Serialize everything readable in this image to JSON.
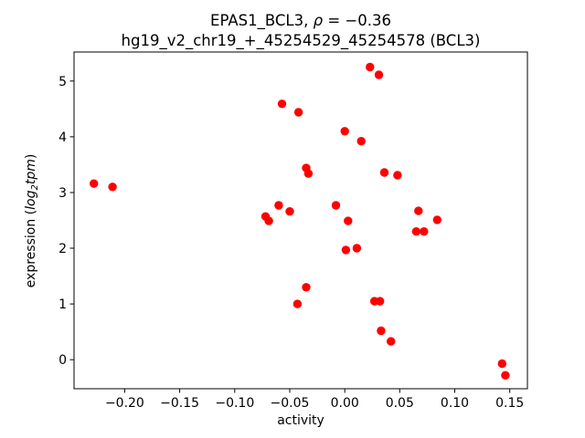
{
  "figure": {
    "background_color": "#ffffff",
    "marker_color": "#ff0000",
    "axis_color": "#000000"
  },
  "chart_data": {
    "type": "scatter",
    "title": "EPAS1_BCL3, ρ = −0.36",
    "title_parts": [
      "EPAS1_BCL3, ",
      "ρ",
      " = −0.36"
    ],
    "subtitle": "hg19_v2_chr19_+_45254529_45254578 (BCL3)",
    "xlabel": "activity",
    "ylabel": "expression (log2tpm)",
    "ylabel_parts": [
      "expression (",
      "log",
      "2",
      "tpm",
      ")"
    ],
    "legend": "none",
    "grid": false,
    "marker_color": "#ff0000",
    "xlim": [
      -0.246,
      0.166
    ],
    "ylim": [
      -0.52,
      5.52
    ],
    "x_ticks": [
      -0.2,
      -0.15,
      -0.1,
      -0.05,
      0.0,
      0.05,
      0.1,
      0.15
    ],
    "x_tick_labels": [
      "−0.20",
      "−0.15",
      "−0.10",
      "−0.05",
      "0.00",
      "0.05",
      "0.10",
      "0.15"
    ],
    "y_ticks": [
      0,
      1,
      2,
      3,
      4,
      5
    ],
    "y_tick_labels": [
      "0",
      "1",
      "2",
      "3",
      "4",
      "5"
    ],
    "points": [
      [
        -0.228,
        3.16
      ],
      [
        -0.211,
        3.1
      ],
      [
        -0.057,
        4.59
      ],
      [
        -0.042,
        4.44
      ],
      [
        0.023,
        5.25
      ],
      [
        0.031,
        5.11
      ],
      [
        0.0,
        4.1
      ],
      [
        0.015,
        3.92
      ],
      [
        -0.035,
        3.44
      ],
      [
        -0.033,
        3.34
      ],
      [
        0.036,
        3.36
      ],
      [
        0.048,
        3.31
      ],
      [
        -0.06,
        2.77
      ],
      [
        -0.05,
        2.66
      ],
      [
        -0.072,
        2.57
      ],
      [
        -0.069,
        2.49
      ],
      [
        -0.008,
        2.77
      ],
      [
        0.003,
        2.49
      ],
      [
        0.067,
        2.67
      ],
      [
        0.084,
        2.51
      ],
      [
        0.065,
        2.3
      ],
      [
        0.072,
        2.3
      ],
      [
        0.001,
        1.97
      ],
      [
        0.011,
        2.0
      ],
      [
        -0.035,
        1.3
      ],
      [
        -0.043,
        1.0
      ],
      [
        0.027,
        1.05
      ],
      [
        0.032,
        1.05
      ],
      [
        0.033,
        0.52
      ],
      [
        0.042,
        0.33
      ],
      [
        0.143,
        -0.07
      ],
      [
        0.146,
        -0.28
      ]
    ]
  }
}
